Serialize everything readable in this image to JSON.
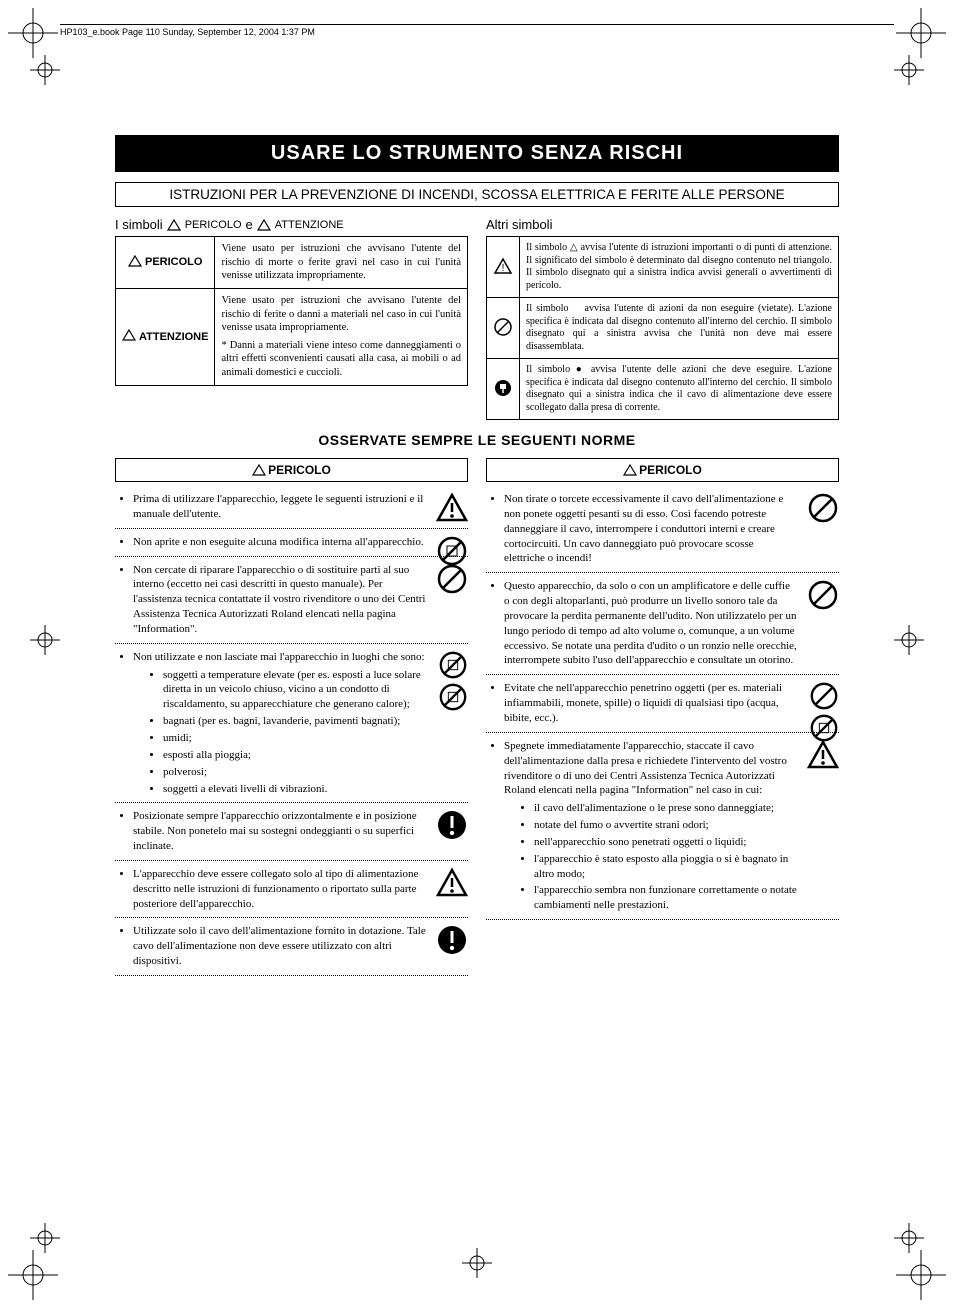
{
  "header_note": "HP103_e.book  Page 110  Sunday, September 12, 2004  1:37 PM",
  "title": "USARE LO STRUMENTO SENZA RISCHI",
  "instruction_box": "ISTRUZIONI PER LA PREVENZIONE DI INCENDI, SCOSSA ELETTRICA E FERITE ALLE PERSONE",
  "symbols_left_heading_parts": {
    "a": "I simboli",
    "b": "PERICOLO",
    "c": "e",
    "d": "ATTENZIONE"
  },
  "symbols_right_heading": "Altri simboli",
  "table_left": {
    "r1_label": "PERICOLO",
    "r1_text": "Viene usato per istruzioni che avvisano l'utente del rischio di morte o ferite gravi nel caso in cui l'unità venisse utilizzata impropriamente.",
    "r2_label": "ATTENZIONE",
    "r2_text_a": "Viene usato per istruzioni che avvisano l'utente del rischio di ferite o danni a materiali nel caso in cui l'unità venisse usata impropriamente.",
    "r2_text_b": "* Danni a materiali viene inteso come danneggiamenti o altri effetti sconvenienti causati alla casa, ai mobili o ad animali domestici e cuccioli."
  },
  "table_right": {
    "r1": "Il simbolo △ avvisa l'utente di istruzioni importanti o di punti di attenzione. Il significato del simbolo è determinato dal disegno contenuto nel triangolo. Il simbolo disegnato qui a sinistra indica avvisi generali o avvertimenti di pericolo.",
    "r2": "Il simbolo ⃠ avvisa l'utente di azioni da non eseguire (vietate). L'azione specifica è indicata dal disegno contenuto all'interno del cerchio. Il simbolo disegnato qui a sinistra avvisa che l'unità non deve mai essere disassemblata.",
    "r3": "Il simbolo ● avvisa l'utente delle azioni che deve eseguire. L'azione specifica è indicata dal disegno contenuto all'interno del cerchio. Il simbolo disegnato qui a sinistra indica che il cavo di alimentazione deve essere scollegato dalla presa di corrente."
  },
  "observe_heading": "OSSERVATE SEMPRE LE SEGUENTI NORME",
  "pericolo_label": "PERICOLO",
  "rules_left": [
    {
      "text": "Prima di utilizzare l'apparecchio, leggete le seguenti istruzioni e il manuale dell'utente.",
      "icon": "warning"
    },
    {
      "text": "Non aprite e non eseguite alcuna modifica interna all'apparecchio.",
      "icon": "no-disassemble"
    },
    {
      "text": "Non cercate di riparare l'apparecchio o di sostituire parti al suo interno (eccetto nei casi descritti in questo manuale). Per l'assistenza tecnica contattate il vostro rivenditore o uno dei Centri Assistenza Tecnica Autorizzati Roland elencati nella pagina \"Information\".",
      "icon": "prohibit"
    },
    {
      "text": "Non utilizzate e non lasciate mai l'apparecchio in luoghi che sono:",
      "icon": "two-prohibit",
      "sub": [
        "soggetti a temperature elevate (per es. esposti a luce solare diretta in un veicolo chiuso, vicino a un condotto di riscaldamento, su apparecchiature che generano calore);",
        "bagnati (per es. bagni, lavanderie, pavimenti bagnati);",
        "umidi;",
        "esposti alla pioggia;",
        "polverosi;",
        "soggetti a elevati livelli di vibrazioni."
      ]
    },
    {
      "text": "Posizionate sempre l'apparecchio orizzontalmente e in posizione stabile. Non ponetelo mai su sostegni ondeggianti o su superfici inclinate.",
      "icon": "must"
    },
    {
      "text": "L'apparecchio deve essere collegato solo al tipo di alimentazione descritto nelle istruzioni di funzionamento o riportato sulla parte posteriore dell'apparecchio.",
      "icon": "warning"
    },
    {
      "text": "Utilizzate solo il cavo dell'alimentazione fornito in dotazione. Tale cavo dell'alimentazione non deve essere utilizzato con altri dispositivi.",
      "icon": "must"
    }
  ],
  "rules_right": [
    {
      "text": "Non tirate o torcete eccessivamente il cavo dell'alimentazione e non ponete oggetti pesanti su di esso. Così facendo potreste danneggiare il cavo, interrompere i conduttori interni e creare cortocircuiti. Un cavo danneggiato può provocare scosse elettriche o incendi!",
      "icon": "prohibit"
    },
    {
      "text": "Questo apparecchio, da solo o con un amplificatore e delle cuffie o con degli altoparlanti, può produrre un livello sonoro tale da provocare la perdita permanente dell'udito. Non utilizzatelo per un lungo periodo di tempo ad alto volume o, comunque, a un volume eccessivo. Se notate una perdita d'udito o un ronzio nelle orecchie, interrompete subito l'uso dell'apparecchio e consultate un otorino.",
      "icon": "prohibit"
    },
    {
      "text": "Evitate che nell'apparecchio penetrino oggetti (per es. materiali infiammabili, monete, spille) o liquidi di qualsiasi tipo (acqua, bibite, ecc.).",
      "icon": "two-prohibit-b"
    },
    {
      "text": "Spegnete immediatamente l'apparecchio, staccate il cavo dell'alimentazione dalla presa e richiedete l'intervento del vostro rivenditore o di uno dei Centri Assistenza Tecnica Autorizzati Roland elencati nella pagina \"Information\" nel caso in cui:",
      "icon": "warning",
      "sub": [
        "il cavo dell'alimentazione o le prese sono danneggiate;",
        "notate del fumo o avvertite strani odori;",
        "nell'apparecchio sono penetrati oggetti o liquidi;",
        "l'apparecchio è stato esposto alla pioggia o si è bagnato in altro modo;",
        "l'apparecchio sembra non funzionare correttamente o notate cambiamenti nelle prestazioni."
      ]
    }
  ],
  "colors": {
    "black": "#000000",
    "white": "#ffffff"
  }
}
